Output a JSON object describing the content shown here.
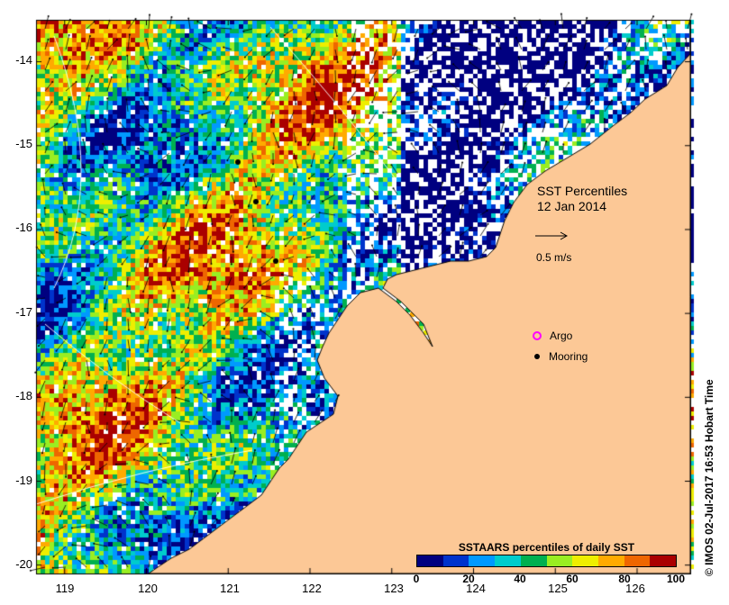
{
  "title": {
    "line1": "SST Percentiles",
    "line2": "12 Jan 2014"
  },
  "vector_scale": {
    "label": "0.5 m/s"
  },
  "legend": {
    "argo": "Argo",
    "mooring": "Mooring"
  },
  "colorbar": {
    "title": "SSTAARS percentiles of daily SST",
    "ticks": [
      "0",
      "20",
      "40",
      "60",
      "80",
      "100"
    ],
    "colors": [
      "#000080",
      "#0033cc",
      "#0099ff",
      "#00cccc",
      "#00b050",
      "#99ee22",
      "#eeee00",
      "#ffaa00",
      "#ee6600",
      "#aa0000"
    ]
  },
  "axes": {
    "y_ticks": [
      "-14",
      "-15",
      "-16",
      "-17",
      "-18",
      "-19",
      "-20"
    ],
    "x_ticks": [
      "119",
      "120",
      "121",
      "122",
      "123",
      "124",
      "125",
      "126"
    ],
    "lon_range": [
      118.65,
      126.65
    ],
    "lat_range": [
      -20.1,
      -13.5
    ]
  },
  "land_color": "#fcc896",
  "credit": "© IMOS 02-Jul-2017 16:53 Hobart Time"
}
